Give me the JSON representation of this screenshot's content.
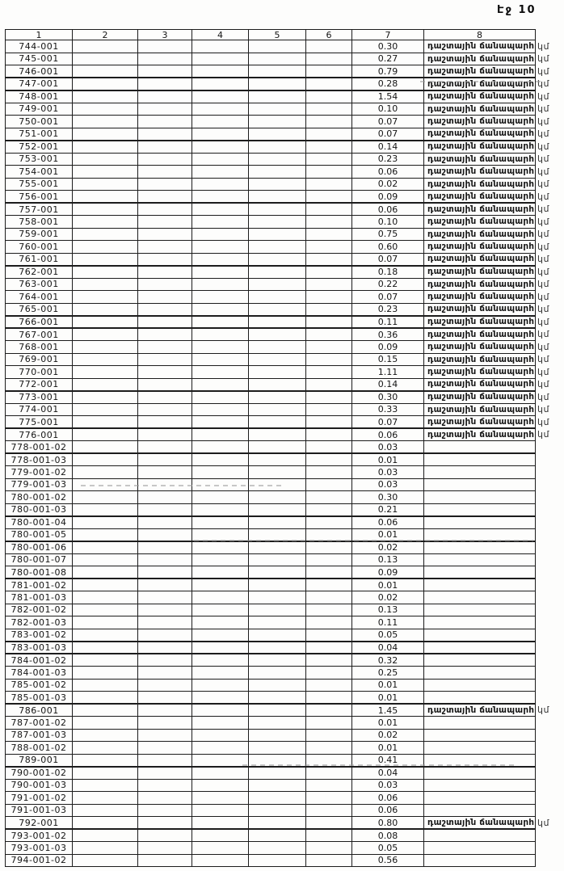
{
  "page": {
    "label": "Էջ 10"
  },
  "table": {
    "headers": [
      "1",
      "2",
      "3",
      "4",
      "5",
      "6",
      "7",
      "8"
    ],
    "road_type_label": "դաշտային ճանապարհ",
    "unit_label": "կմ",
    "rows": [
      {
        "id": "744-001",
        "value": "0.30",
        "type": "դաշտային ճանապարհ",
        "unit": "կմ"
      },
      {
        "id": "745-001",
        "value": "0.27",
        "type": "դաշտային ճանապարհ",
        "unit": "կմ"
      },
      {
        "id": "746-001",
        "value": "0.79",
        "type": "դաշտային ճանապարհ",
        "unit": "կմ"
      },
      {
        "id": "747-001",
        "value": "0.28",
        "type": "դաշտային ճանապարհ",
        "unit": "կմ"
      },
      {
        "id": "748-001",
        "value": "1.54",
        "type": "դաշտային ճանապարհ",
        "unit": "կմ"
      },
      {
        "id": "749-001",
        "value": "0.10",
        "type": "դաշտային ճանապարհ",
        "unit": "կմ"
      },
      {
        "id": "750-001",
        "value": "0.07",
        "type": "դաշտային ճանապարհ",
        "unit": "կմ"
      },
      {
        "id": "751-001",
        "value": "0.07",
        "type": "դաշտային ճանապարհ",
        "unit": "կմ"
      },
      {
        "id": "752-001",
        "value": "0.14",
        "type": "դաշտային ճանապարհ",
        "unit": "կմ"
      },
      {
        "id": "753-001",
        "value": "0.23",
        "type": "դաշտային ճանապարհ",
        "unit": "կմ"
      },
      {
        "id": "754-001",
        "value": "0.06",
        "type": "դաշտային ճանապարհ",
        "unit": "կմ"
      },
      {
        "id": "755-001",
        "value": "0.02",
        "type": "դաշտային ճանապարհ",
        "unit": "կմ"
      },
      {
        "id": "756-001",
        "value": "0.09",
        "type": "դաշտային ճանապարհ",
        "unit": "կմ"
      },
      {
        "id": "757-001",
        "value": "0.06",
        "type": "դաշտային ճանապարհ",
        "unit": "կմ"
      },
      {
        "id": "758-001",
        "value": "0.10",
        "type": "դաշտային ճանապարհ",
        "unit": "կմ"
      },
      {
        "id": "759-001",
        "value": "0.75",
        "type": "դաշտային ճանապարհ",
        "unit": "կմ"
      },
      {
        "id": "760-001",
        "value": "0.60",
        "type": "դաշտային ճանապարհ",
        "unit": "կմ"
      },
      {
        "id": "761-001",
        "value": "0.07",
        "type": "դաշտային ճանապարհ",
        "unit": "կմ"
      },
      {
        "id": "762-001",
        "value": "0.18",
        "type": "դաշտային ճանապարհ",
        "unit": "կմ"
      },
      {
        "id": "763-001",
        "value": "0.22",
        "type": "դաշտային ճանապարհ",
        "unit": "կմ"
      },
      {
        "id": "764-001",
        "value": "0.07",
        "type": "դաշտային ճանապարհ",
        "unit": "կմ"
      },
      {
        "id": "765-001",
        "value": "0.23",
        "type": "դաշտային ճանապարհ",
        "unit": "կմ"
      },
      {
        "id": "766-001",
        "value": "0.11",
        "type": "դաշտային ճանապարհ",
        "unit": "կմ"
      },
      {
        "id": "767-001",
        "value": "0.36",
        "type": "դաշտային ճանապարհ",
        "unit": "կմ"
      },
      {
        "id": "768-001",
        "value": "0.09",
        "type": "դաշտային ճանապարհ",
        "unit": "կմ"
      },
      {
        "id": "769-001",
        "value": "0.15",
        "type": "դաշտային ճանապարհ",
        "unit": "կմ"
      },
      {
        "id": "770-001",
        "value": "1.11",
        "type": "դաշտային ճանապարհ",
        "unit": "կմ"
      },
      {
        "id": "772-001",
        "value": "0.14",
        "type": "դաշտային ճանապարհ",
        "unit": "կմ"
      },
      {
        "id": "773-001",
        "value": "0.30",
        "type": "դաշտային ճանապարհ",
        "unit": "կմ"
      },
      {
        "id": "774-001",
        "value": "0.33",
        "type": "դաշտային ճանապարհ",
        "unit": "կմ"
      },
      {
        "id": "775-001",
        "value": "0.07",
        "type": "դաշտային ճանապարհ",
        "unit": "կմ"
      },
      {
        "id": "776-001",
        "value": "0.06",
        "type": "դաշտային ճանապարհ",
        "unit": "կմ"
      },
      {
        "id": "778-001-02",
        "value": "0.03",
        "type": "",
        "unit": ""
      },
      {
        "id": "778-001-03",
        "value": "0.01",
        "type": "",
        "unit": ""
      },
      {
        "id": "779-001-02",
        "value": "0.03",
        "type": "",
        "unit": ""
      },
      {
        "id": "779-001-03",
        "value": "0.03",
        "type": "",
        "unit": ""
      },
      {
        "id": "780-001-02",
        "value": "0.30",
        "type": "",
        "unit": ""
      },
      {
        "id": "780-001-03",
        "value": "0.21",
        "type": "",
        "unit": ""
      },
      {
        "id": "780-001-04",
        "value": "0.06",
        "type": "",
        "unit": ""
      },
      {
        "id": "780-001-05",
        "value": "0.01",
        "type": "",
        "unit": ""
      },
      {
        "id": "780-001-06",
        "value": "0.02",
        "type": "",
        "unit": ""
      },
      {
        "id": "780-001-07",
        "value": "0.13",
        "type": "",
        "unit": ""
      },
      {
        "id": "780-001-08",
        "value": "0.09",
        "type": "",
        "unit": ""
      },
      {
        "id": "781-001-02",
        "value": "0.01",
        "type": "",
        "unit": ""
      },
      {
        "id": "781-001-03",
        "value": "0.02",
        "type": "",
        "unit": ""
      },
      {
        "id": "782-001-02",
        "value": "0.13",
        "type": "",
        "unit": ""
      },
      {
        "id": "782-001-03",
        "value": "0.11",
        "type": "",
        "unit": ""
      },
      {
        "id": "783-001-02",
        "value": "0.05",
        "type": "",
        "unit": ""
      },
      {
        "id": "783-001-03",
        "value": "0.04",
        "type": "",
        "unit": ""
      },
      {
        "id": "784-001-02",
        "value": "0.32",
        "type": "",
        "unit": ""
      },
      {
        "id": "784-001-03",
        "value": "0.25",
        "type": "",
        "unit": ""
      },
      {
        "id": "785-001-02",
        "value": "0.01",
        "type": "",
        "unit": ""
      },
      {
        "id": "785-001-03",
        "value": "0.01",
        "type": "",
        "unit": ""
      },
      {
        "id": "786-001",
        "value": "1.45",
        "type": "դաշտային ճանապարհ",
        "unit": "կմ"
      },
      {
        "id": "787-001-02",
        "value": "0.01",
        "type": "",
        "unit": ""
      },
      {
        "id": "787-001-03",
        "value": "0.02",
        "type": "",
        "unit": ""
      },
      {
        "id": "788-001-02",
        "value": "0.01",
        "type": "",
        "unit": ""
      },
      {
        "id": "789-001",
        "value": "0.41",
        "type": "",
        "unit": ""
      },
      {
        "id": "790-001-02",
        "value": "0.04",
        "type": "",
        "unit": ""
      },
      {
        "id": "790-001-03",
        "value": "0.03",
        "type": "",
        "unit": ""
      },
      {
        "id": "791-001-02",
        "value": "0.06",
        "type": "",
        "unit": ""
      },
      {
        "id": "791-001-03",
        "value": "0.06",
        "type": "",
        "unit": ""
      },
      {
        "id": "792-001",
        "value": "0.80",
        "type": "դաշտային ճանապարհ",
        "unit": "կմ"
      },
      {
        "id": "793-001-02",
        "value": "0.08",
        "type": "",
        "unit": ""
      },
      {
        "id": "793-001-03",
        "value": "0.05",
        "type": "",
        "unit": ""
      },
      {
        "id": "794-001-02",
        "value": "0.56",
        "type": "",
        "unit": ""
      }
    ]
  }
}
